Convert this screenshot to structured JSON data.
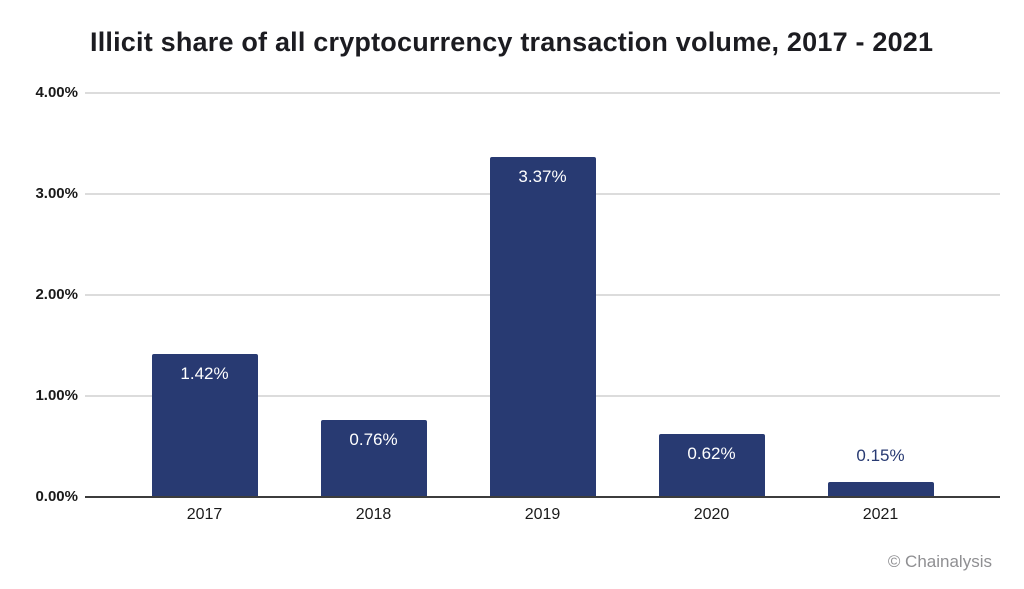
{
  "title": "Illicit share of all cryptocurrency transaction volume, 2017 - 2021",
  "attribution": "© Chainalysis",
  "chart_data": {
    "type": "bar",
    "title": "Illicit share of all cryptocurrency transaction volume, 2017 - 2021",
    "categories": [
      "2017",
      "2018",
      "2019",
      "2020",
      "2021"
    ],
    "values": [
      1.42,
      0.76,
      3.37,
      0.62,
      0.15
    ],
    "value_labels": [
      "1.42%",
      "0.76%",
      "3.37%",
      "0.62%",
      "0.15%"
    ],
    "xlabel": "",
    "ylabel": "",
    "ylim": [
      0,
      4
    ],
    "y_ticks": [
      {
        "value": 0,
        "label": "0.00%"
      },
      {
        "value": 1,
        "label": "1.00%"
      },
      {
        "value": 2,
        "label": "2.00%"
      },
      {
        "value": 3,
        "label": "3.00%"
      },
      {
        "value": 4,
        "label": "4.00%"
      }
    ],
    "grid": true,
    "legend": false,
    "colors": {
      "bar": "#283a72",
      "label_inside": "#ffffff",
      "label_outside": "#283a72",
      "gridline": "#dcdcdc",
      "axis_line": "#3c3c3c",
      "tick_text": "#1a1a1a",
      "attribution_text": "#8f8f92"
    }
  }
}
